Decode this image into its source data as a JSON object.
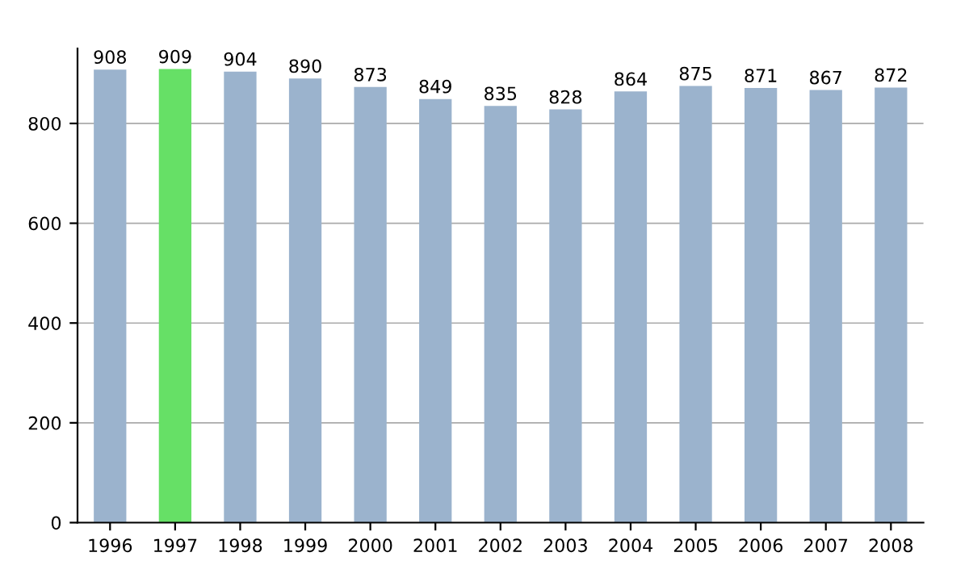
{
  "chart_data": {
    "type": "bar",
    "categories": [
      "1996",
      "1997",
      "1998",
      "1999",
      "2000",
      "2001",
      "2002",
      "2003",
      "2004",
      "2005",
      "2006",
      "2007",
      "2008"
    ],
    "values": [
      908,
      909,
      904,
      890,
      873,
      849,
      835,
      828,
      864,
      875,
      871,
      867,
      872
    ],
    "colors": [
      "#9bb3cd",
      "#66e066",
      "#9bb3cd",
      "#9bb3cd",
      "#9bb3cd",
      "#9bb3cd",
      "#9bb3cd",
      "#9bb3cd",
      "#9bb3cd",
      "#9bb3cd",
      "#9bb3cd",
      "#9bb3cd",
      "#9bb3cd"
    ],
    "ylim": [
      0,
      950
    ],
    "yticks": [
      0,
      200,
      400,
      600,
      800
    ],
    "grid": "y",
    "data_labels": true
  }
}
